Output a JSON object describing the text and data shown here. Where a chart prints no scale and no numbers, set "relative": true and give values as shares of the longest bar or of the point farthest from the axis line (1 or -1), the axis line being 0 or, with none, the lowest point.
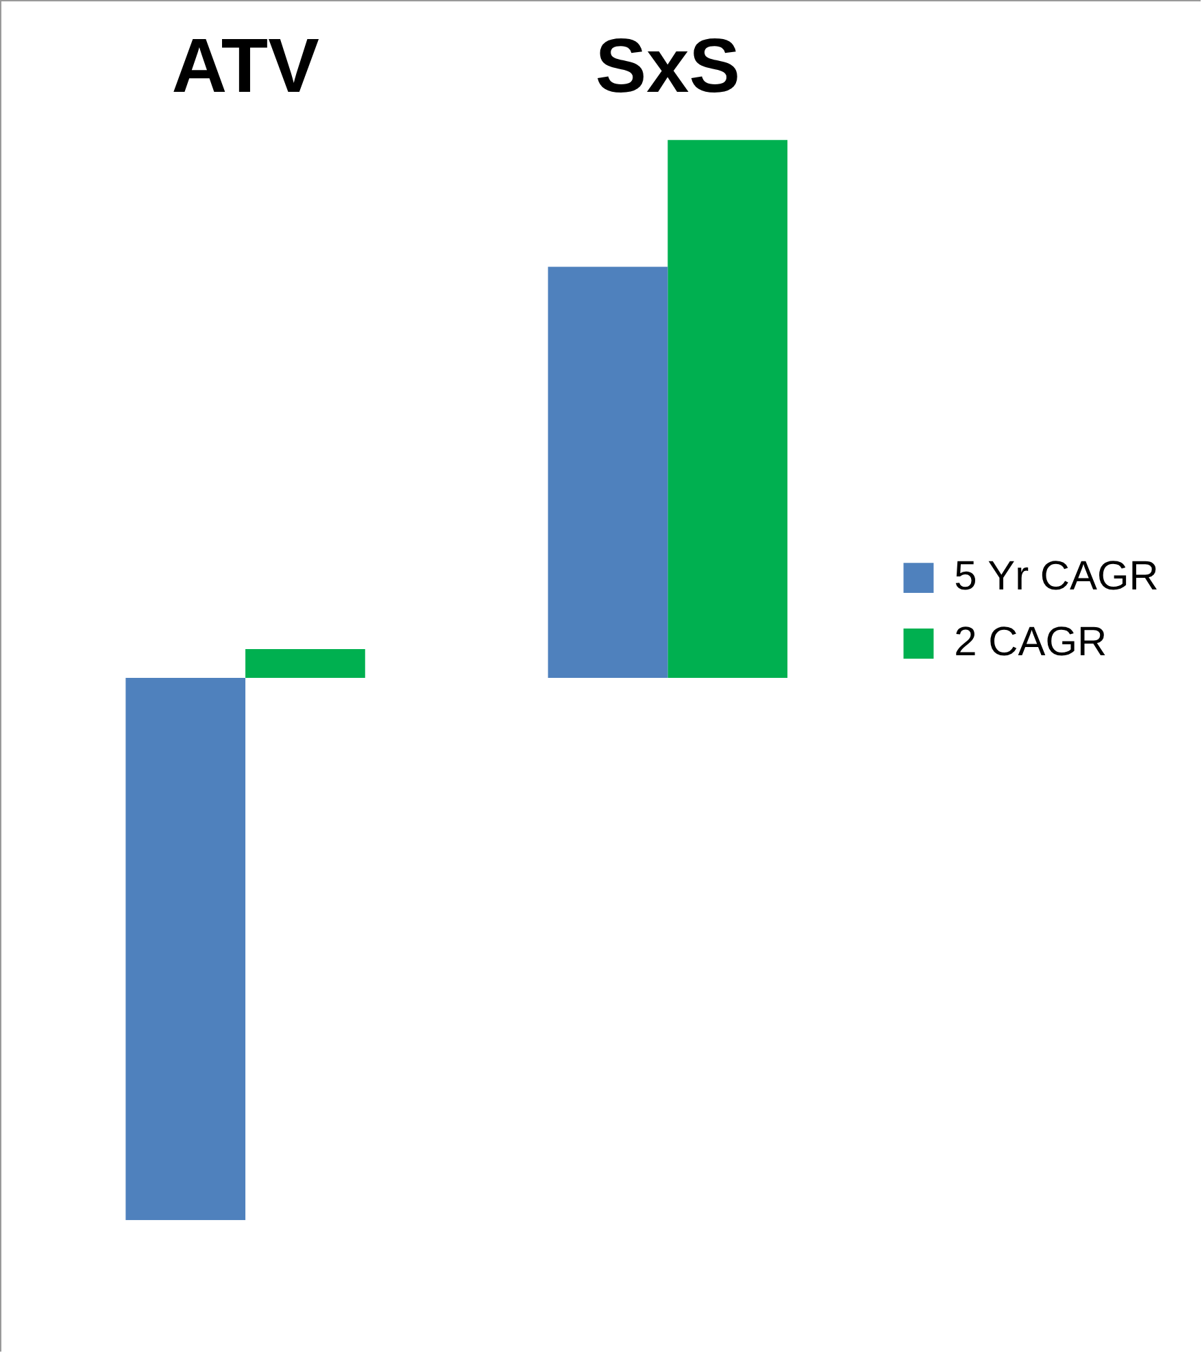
{
  "chart_data": {
    "type": "bar",
    "relative": true,
    "categories": [
      "ATV",
      "SxS"
    ],
    "series": [
      {
        "name": "5 Yr CAGR",
        "color": "#4f81bd",
        "values": [
          -1,
          0.758
        ]
      },
      {
        "name": "2 CAGR",
        "color": "#00b050",
        "values": [
          0.053,
          0.992
        ]
      }
    ],
    "legend": "right"
  }
}
